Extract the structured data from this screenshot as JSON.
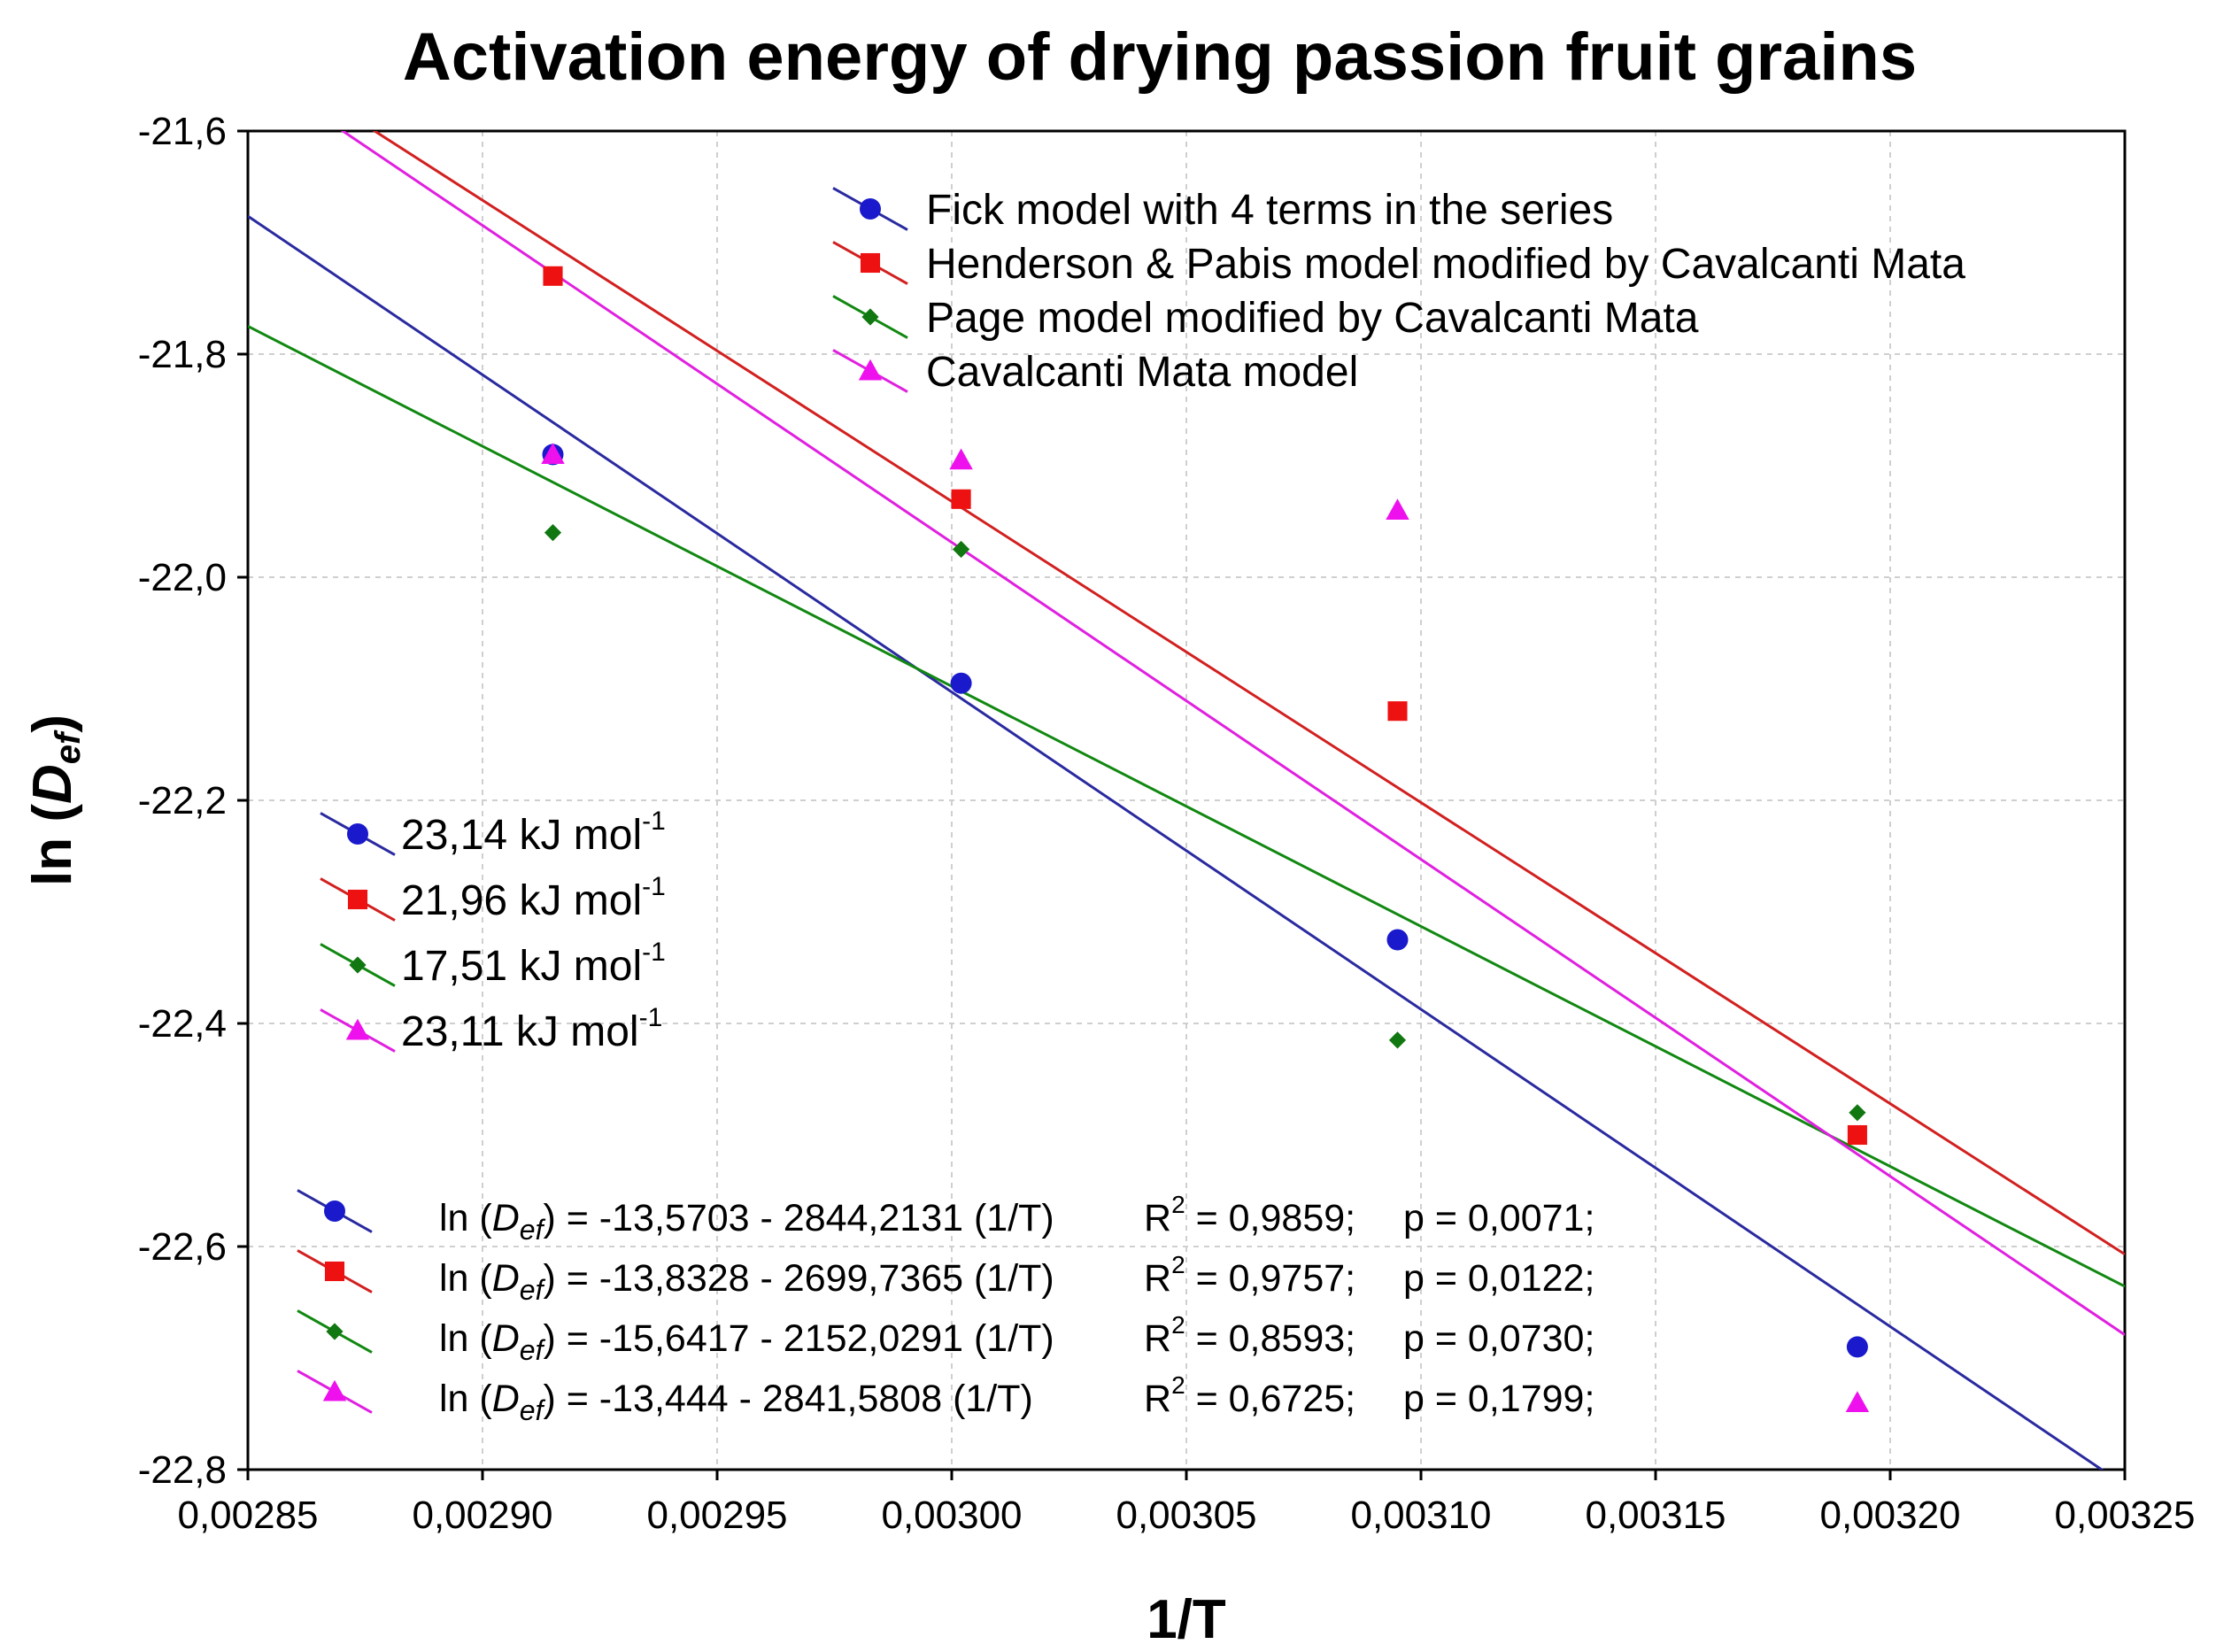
{
  "chart_data": {
    "type": "scatter",
    "title": "Activation energy of drying passion fruit grains",
    "xlabel": "1/T",
    "ylabel_prefix": "ln (",
    "ylabel_var": "D",
    "ylabel_sub": "ef",
    "ylabel_suffix": ")",
    "xlim": [
      0.00285,
      0.00325
    ],
    "ylim": [
      -22.8,
      -21.6
    ],
    "grid": true,
    "x_ticks": [
      0.00285,
      0.0029,
      0.00295,
      0.003,
      0.00305,
      0.0031,
      0.00315,
      0.0032,
      0.00325
    ],
    "x_tick_labels": [
      "0,00285",
      "0,00290",
      "0,00295",
      "0,00300",
      "0,00305",
      "0,00310",
      "0,00315",
      "0,00320",
      "0,00325"
    ],
    "y_ticks": [
      -21.6,
      -21.8,
      -22.0,
      -22.2,
      -22.4,
      -22.6,
      -22.8
    ],
    "y_tick_labels": [
      "-21,6",
      "-21,8",
      "-22,0",
      "-22,2",
      "-22,4",
      "-22,6",
      "-22,8"
    ],
    "x": [
      0.002915,
      0.003002,
      0.003095,
      0.003193
    ],
    "series": [
      {
        "name": "Fick model with 4 terms in the series",
        "color": "#1a1acc",
        "line_color": "#2a2aa0",
        "marker": "circle",
        "values": [
          -21.89,
          -22.095,
          -22.325,
          -22.69
        ],
        "fit": {
          "intercept": -13.5703,
          "slope": -2844.2131
        },
        "activation_energy": "23,14 kJ mol",
        "eq_prefix": "ln (",
        "eq_rest": ") = -13,5703 - 2844,2131 (1/T)",
        "eq_r2": "R",
        "eq_r2_val": " = 0,9859;",
        "eq_p": "p = 0,0071;"
      },
      {
        "name": "Henderson & Pabis model modified by Cavalcanti Mata",
        "color": "#ee1111",
        "line_color": "#d22020",
        "marker": "square",
        "values": [
          -21.73,
          -21.93,
          -22.12,
          -22.5
        ],
        "fit": {
          "intercept": -13.8328,
          "slope": -2699.7365
        },
        "activation_energy": "21,96 kJ mol",
        "eq_prefix": "ln (",
        "eq_rest": ") = -13,8328 - 2699,7365 (1/T)",
        "eq_r2": "R",
        "eq_r2_val": " = 0,9757;",
        "eq_p": "p = 0,0122;"
      },
      {
        "name": "Page model modified by Cavalcanti Mata",
        "color": "#117711",
        "line_color": "#118811",
        "marker": "diamond",
        "values": [
          -21.96,
          -21.975,
          -22.415,
          -22.48
        ],
        "fit": {
          "intercept": -15.6417,
          "slope": -2152.0291
        },
        "activation_energy": "17,51 kJ mol",
        "eq_prefix": "ln (",
        "eq_rest": ") = -15,6417 - 2152,0291 (1/T)",
        "eq_r2": "R",
        "eq_r2_val": " = 0,8593;",
        "eq_p": "p = 0,0730;"
      },
      {
        "name": "Cavalcanti Mata model",
        "color": "#ee11ee",
        "line_color": "#e020e0",
        "marker": "triangle",
        "values": [
          -21.89,
          -21.895,
          -21.94,
          -22.74
        ],
        "fit": {
          "intercept": -13.444,
          "slope": -2841.5808
        },
        "activation_energy": "23,11 kJ mol",
        "eq_prefix": "ln (",
        "eq_rest": ") = -13,444 - 2841,5808 (1/T)",
        "eq_r2": "R",
        "eq_r2_val": " = 0,6725;",
        "eq_p": "p = 0,1799;"
      }
    ],
    "unit_superscript": "-1",
    "r2_superscript": "2",
    "eq_var": "D",
    "eq_sub": "ef"
  }
}
